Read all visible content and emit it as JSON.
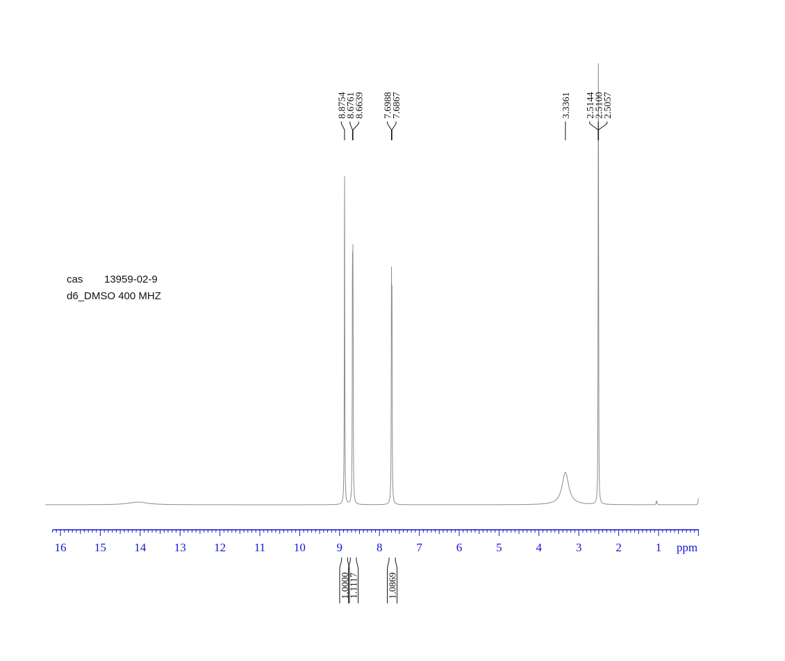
{
  "sample": {
    "cas_label": "cas",
    "cas_number": "13959-02-9",
    "solvent_freq": "d6_DMSO  400 MHZ"
  },
  "chart_data": {
    "type": "line",
    "title": "",
    "xlabel": "ppm",
    "ylabel": "",
    "xlim": [
      16.2,
      0.0
    ],
    "x_ticks": [
      16,
      15,
      14,
      13,
      12,
      11,
      10,
      9,
      8,
      7,
      6,
      5,
      4,
      3,
      2,
      1
    ],
    "minor_tick_step": 0.1,
    "reversed_axis": true,
    "peaks": [
      {
        "ppm": 8.8754,
        "height": 1.0,
        "width": 0.006
      },
      {
        "ppm": 8.6761,
        "height": 0.65,
        "width": 0.006
      },
      {
        "ppm": 8.6639,
        "height": 0.64,
        "width": 0.006
      },
      {
        "ppm": 7.6988,
        "height": 0.58,
        "width": 0.006
      },
      {
        "ppm": 7.6867,
        "height": 0.58,
        "width": 0.006
      },
      {
        "ppm": 3.3361,
        "height": 0.095,
        "width": 0.1
      },
      {
        "ppm": 2.5144,
        "height": 0.52,
        "width": 0.005
      },
      {
        "ppm": 2.51,
        "height": 0.72,
        "width": 0.005
      },
      {
        "ppm": 2.5057,
        "height": 0.52,
        "width": 0.005
      },
      {
        "ppm": 14.05,
        "height": 0.008,
        "width": 0.28
      },
      {
        "ppm": 1.05,
        "height": 0.012,
        "width": 0.01
      },
      {
        "ppm": 0.0,
        "height": 0.02,
        "width": 0.01
      }
    ],
    "peak_labels": [
      {
        "group": "A",
        "text": "8.8754",
        "ppm": 8.8754
      },
      {
        "group": "A",
        "text": "8.6761",
        "ppm": 8.6761
      },
      {
        "group": "A",
        "text": "8.6639",
        "ppm": 8.6639
      },
      {
        "group": "B",
        "text": "7.6988",
        "ppm": 7.6988
      },
      {
        "group": "B",
        "text": "7.6867",
        "ppm": 7.6867
      },
      {
        "group": "C",
        "text": "3.3361",
        "ppm": 3.3361
      },
      {
        "group": "D",
        "text": "2.5144",
        "ppm": 2.5144
      },
      {
        "group": "D",
        "text": "2.5100",
        "ppm": 2.51
      },
      {
        "group": "D",
        "text": "2.5057",
        "ppm": 2.5057
      }
    ],
    "integrals": [
      {
        "value": "1.0000",
        "from_ppm": 8.95,
        "to_ppm": 8.8
      },
      {
        "value": "1.1117",
        "from_ppm": 8.73,
        "to_ppm": 8.58
      },
      {
        "value": "1.0869",
        "from_ppm": 7.76,
        "to_ppm": 7.6
      }
    ]
  },
  "colors": {
    "spectrum": "#8a8a8a",
    "axis": "#1515d0",
    "text": "#111111"
  }
}
